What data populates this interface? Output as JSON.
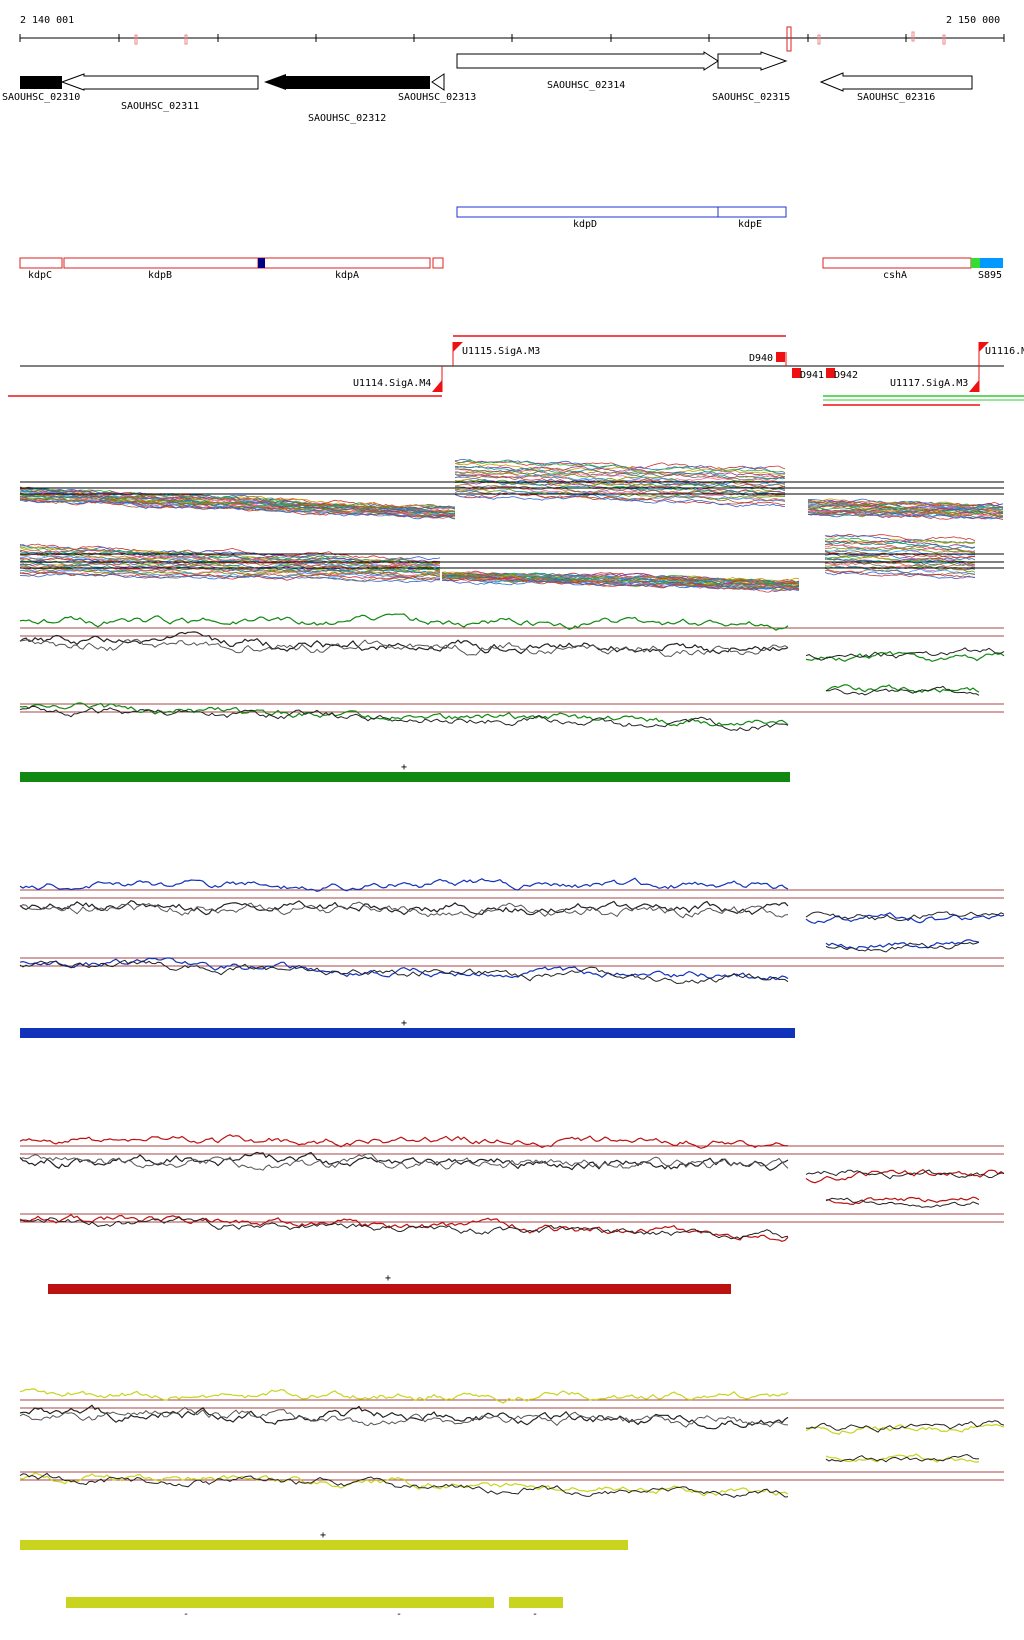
{
  "coordinates": {
    "start": "2 140 001",
    "end": "2 150 000"
  },
  "genes": [
    {
      "id": "g2310",
      "label": "SAOUHSC_02310",
      "strand": "-",
      "filled": true
    },
    {
      "id": "g2311",
      "label": "SAOUHSC_02311",
      "strand": "-",
      "filled": false
    },
    {
      "id": "g2312",
      "label": "SAOUHSC_02312",
      "strand": "-",
      "filled": true
    },
    {
      "id": "g2313",
      "label": "SAOUHSC_02313",
      "strand": "-",
      "filled": false
    },
    {
      "id": "g2314",
      "label": "SAOUHSC_02314",
      "strand": "+",
      "filled": false
    },
    {
      "id": "g2315",
      "label": "SAOUHSC_02315",
      "strand": "+",
      "filled": false
    },
    {
      "id": "g2316",
      "label": "SAOUHSC_02316",
      "strand": "-",
      "filled": false
    }
  ],
  "annotations_plus": [
    {
      "label": "kdpD",
      "color": "#2233cc"
    },
    {
      "label": "kdpE",
      "color": "#2233cc"
    }
  ],
  "annotations_minus": [
    {
      "label": "kdpC",
      "color": "#cc2222"
    },
    {
      "label": "kdpB",
      "color": "#cc2222"
    },
    {
      "label": "kdpA",
      "color": "#cc2222"
    },
    {
      "label": "cshA",
      "color": "#cc2222"
    },
    {
      "label": "S895",
      "color": "#0099ff"
    }
  ],
  "segments": [
    {
      "label": "U1115.SigA.M3"
    },
    {
      "label": "U1114.SigA.M4"
    },
    {
      "label": "D940"
    },
    {
      "label": "D941"
    },
    {
      "label": "D942"
    },
    {
      "label": "U1117.SigA.M3"
    },
    {
      "label": "U1116.M"
    }
  ],
  "condition_panels": [
    {
      "name": "green",
      "color": "#118811",
      "strand_mark": "+"
    },
    {
      "name": "blue",
      "color": "#1133bb",
      "strand_mark": "+"
    },
    {
      "name": "red",
      "color": "#bb1111",
      "strand_mark": "+"
    },
    {
      "name": "yellow",
      "color": "#c8d41e",
      "strand_mark": "+",
      "minus_marks": [
        "-",
        "-",
        "-"
      ]
    }
  ],
  "colors": {
    "outline_red": "#dd2222",
    "outline_blue": "#2233cc",
    "segment_red": "#ee1111",
    "threshold": "#aa4444"
  }
}
